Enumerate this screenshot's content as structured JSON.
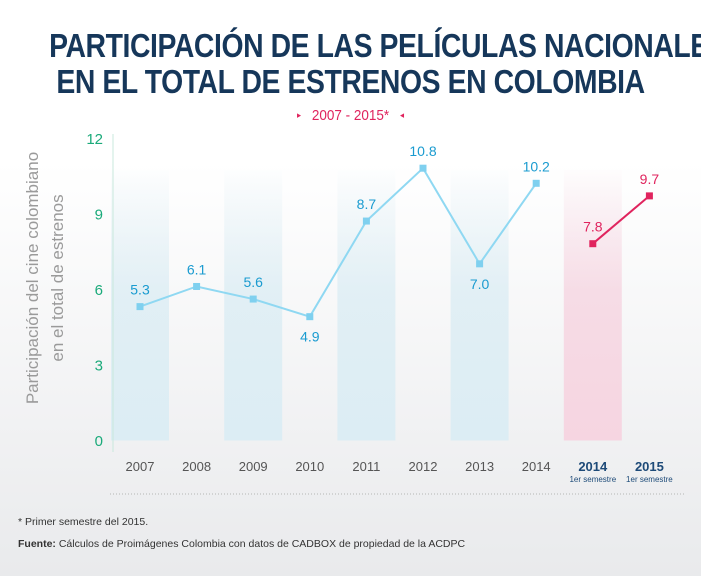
{
  "title_line1": "PARTICIPACIÓN DE LAS PELÍCULAS NACIONALES",
  "title_line2": "EN EL TOTAL DE ESTRENOS EN COLOMBIA",
  "subtitle": "2007 - 2015*",
  "subtitle_marker_left": "▸",
  "subtitle_marker_right": "◂",
  "footnote": "* Primer semestre del 2015.",
  "source_label": "Fuente:",
  "source_text": "Cálculos de Proimágenes Colombia con datos de CADBOX de propiedad de la ACDPC",
  "colors": {
    "title": "#16375a",
    "line_annual": "#8fd8f2",
    "bar_annual": "#dcedf4",
    "line_semester": "#e0245e",
    "bar_semester": "#f6d5e1",
    "axis_ticks": "#1aaa7a",
    "annual_labels": "#1a9bd0",
    "semester_labels": "#e0245e",
    "semester_category": "#1d4a78"
  },
  "chart_data": {
    "type": "line",
    "ylabel_line1": "Participación del cine colombiano",
    "ylabel_line2": "en el total de estrenos",
    "ylim": [
      0,
      12
    ],
    "yticks": [
      0,
      3,
      6,
      9,
      12
    ],
    "categories": [
      "2007",
      "2008",
      "2009",
      "2010",
      "2011",
      "2012",
      "2013",
      "2014",
      "2014",
      "2015"
    ],
    "category_notes": [
      "",
      "",
      "",
      "",
      "",
      "",
      "",
      "",
      "1er semestre",
      "1er semestre"
    ],
    "shaded_categories": [
      "2007",
      "2009",
      "2011",
      "2013",
      "2014 1er semestre"
    ],
    "series": [
      {
        "values": [
          5.3,
          6.1,
          5.6,
          4.9,
          8.7,
          10.8,
          7.0,
          10.2,
          null,
          null
        ],
        "labels": [
          "5.3",
          "6.1",
          "5.6",
          "4.9",
          "8.7",
          "10.8",
          "7.0",
          "10.2",
          "",
          ""
        ]
      },
      {
        "values": [
          null,
          null,
          null,
          null,
          null,
          null,
          null,
          null,
          7.8,
          9.7
        ],
        "labels": [
          "",
          "",
          "",
          "",
          "",
          "",
          "",
          "",
          "7.8",
          "9.7"
        ]
      }
    ]
  }
}
